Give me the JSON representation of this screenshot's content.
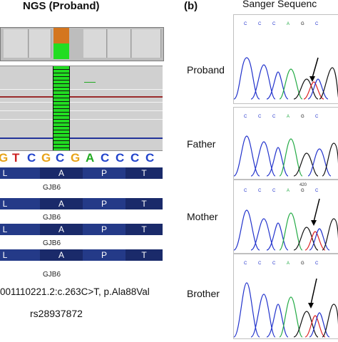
{
  "panel_a": {
    "title": "NGS (Proband)",
    "sequence": [
      {
        "base": "G",
        "color": "#e8a317"
      },
      {
        "base": "T",
        "color": "#cc2222"
      },
      {
        "base": "C",
        "color": "#2244cc"
      },
      {
        "base": "G",
        "color": "#e8a317"
      },
      {
        "base": "C",
        "color": "#2244cc"
      },
      {
        "base": "G",
        "color": "#e8a317"
      },
      {
        "base": "A",
        "color": "#22aa22"
      },
      {
        "base": "C",
        "color": "#2244cc"
      },
      {
        "base": "C",
        "color": "#2244cc"
      },
      {
        "base": "C",
        "color": "#2244cc"
      },
      {
        "base": "C",
        "color": "#2244cc"
      }
    ],
    "amino_acids": [
      "L",
      "A",
      "P",
      "T"
    ],
    "gene_label": "GJB6",
    "variant": "001110221.2:c.263C>T, p.Ala88Val",
    "rsid": "rs28937872",
    "highlight_colors": {
      "ref": "#d4761f",
      "alt": "#22dd22"
    }
  },
  "panel_b": {
    "label": "(b)",
    "title": "Sanger Sequenc",
    "rows": [
      {
        "name": "Proband",
        "bases": [
          "C",
          "C",
          "C",
          "A",
          "G",
          "C"
        ],
        "marker": ""
      },
      {
        "name": "Father",
        "bases": [
          "C",
          "C",
          "C",
          "A",
          "G",
          "C"
        ],
        "marker": ""
      },
      {
        "name": "Mother",
        "bases": [
          "C",
          "C",
          "C",
          "A",
          "G",
          "C"
        ],
        "marker": "420"
      },
      {
        "name": "Brother",
        "bases": [
          "C",
          "C",
          "C",
          "A",
          "G",
          "C"
        ],
        "marker": ""
      }
    ],
    "trace_colors": {
      "C": "#2233cc",
      "A": "#22aa44",
      "G": "#111111",
      "T": "#dd2222"
    }
  }
}
